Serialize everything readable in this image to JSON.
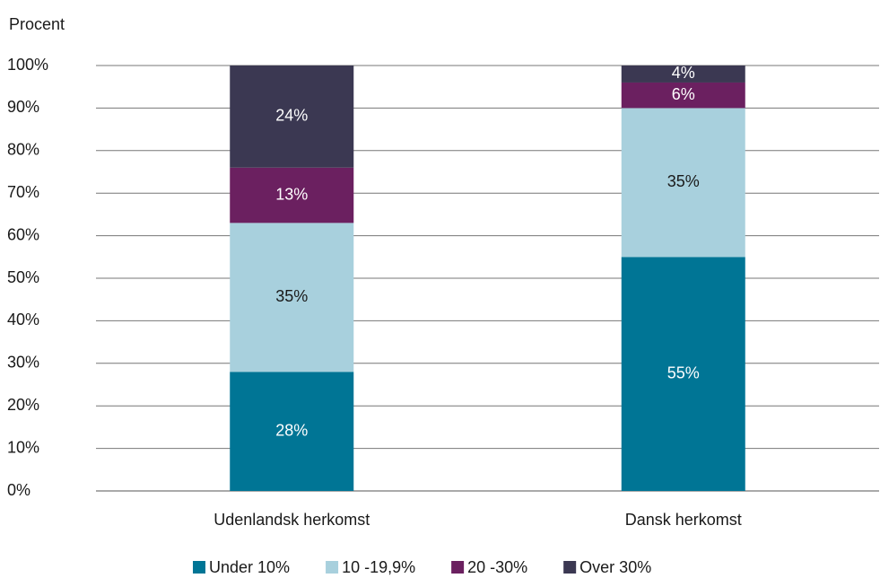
{
  "chart_data": {
    "type": "stacked_bar",
    "y_label": "Procent",
    "categories": [
      "Udenlandsk herkomst",
      "Dansk herkomst"
    ],
    "series": [
      {
        "name": "Under 10%",
        "color": "#007595",
        "values": [
          28,
          55
        ],
        "value_labels": [
          "28%",
          "55%"
        ]
      },
      {
        "name": "10 -19,9%",
        "color": "#a8d0dd",
        "values": [
          35,
          35
        ],
        "value_labels": [
          "35%",
          "35%"
        ]
      },
      {
        "name": "20 -30%",
        "color": "#6b2060",
        "values": [
          13,
          6
        ],
        "value_labels": [
          "13%",
          "6%"
        ]
      },
      {
        "name": "Over 30%",
        "color": "#3b3852",
        "values": [
          24,
          4
        ],
        "value_labels": [
          "24%",
          "4%"
        ]
      }
    ],
    "ylim": [
      0,
      100
    ],
    "yticks": [
      {
        "value": 0,
        "label": "0%"
      },
      {
        "value": 10,
        "label": "10%"
      },
      {
        "value": 20,
        "label": "20%"
      },
      {
        "value": 30,
        "label": "30%"
      },
      {
        "value": 40,
        "label": "40%"
      },
      {
        "value": 50,
        "label": "50%"
      },
      {
        "value": 60,
        "label": "60%"
      },
      {
        "value": 70,
        "label": "70%"
      },
      {
        "value": 80,
        "label": "80%"
      },
      {
        "value": 90,
        "label": "90%"
      },
      {
        "value": 100,
        "label": "100%"
      }
    ],
    "grid": true,
    "legend": "bottom"
  }
}
